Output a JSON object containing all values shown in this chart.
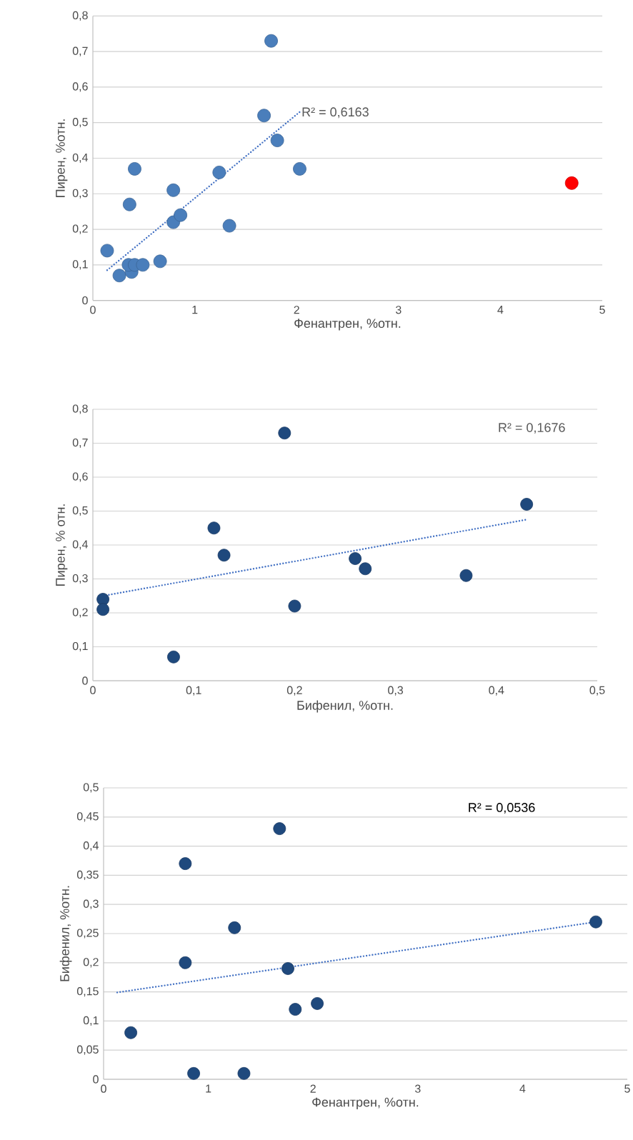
{
  "chart_data": [
    {
      "type": "scatter",
      "xlabel": "Фенантрен, %отн.",
      "ylabel": "Пирен, %отн.",
      "xlim": [
        0,
        5
      ],
      "ylim": [
        0,
        0.8
      ],
      "xticks": [
        0,
        1,
        2,
        3,
        4,
        5
      ],
      "yticks": [
        0,
        {
          "value": 0.1,
          "label": "0,1"
        },
        {
          "value": 0.2,
          "label": "0,2"
        },
        {
          "value": 0.3,
          "label": "0,3"
        },
        {
          "value": 0.4,
          "label": "0,4"
        },
        {
          "value": 0.5,
          "label": "0,5"
        },
        {
          "value": 0.6,
          "label": "0,6"
        },
        {
          "value": 0.7,
          "label": "0,7"
        },
        {
          "value": 0.8,
          "label": "0,8"
        }
      ],
      "grid": "y",
      "annotations": [
        "R² = 0,6163"
      ],
      "series": [
        {
          "type": "scatter",
          "marker": "circle",
          "color": "#4a7ebb",
          "x": [
            0.14,
            0.26,
            0.38,
            0.35,
            0.41,
            0.49,
            0.66,
            0.36,
            0.41,
            0.79,
            0.79,
            0.86,
            1.24,
            1.34,
            1.68,
            1.75,
            1.81,
            2.03
          ],
          "values": [
            0.14,
            0.07,
            0.08,
            0.1,
            0.1,
            0.1,
            0.11,
            0.27,
            0.37,
            0.31,
            0.22,
            0.24,
            0.36,
            0.21,
            0.52,
            0.73,
            0.45,
            0.37
          ]
        },
        {
          "type": "scatter",
          "marker": "circle",
          "color": "#ff0000",
          "x": [
            4.7
          ],
          "values": [
            0.33
          ]
        },
        {
          "type": "line",
          "color": "#4472c4",
          "line_style": "dotted",
          "marker": "none",
          "x": [
            0.14,
            2.03
          ],
          "values": [
            0.085,
            0.53
          ]
        }
      ]
    },
    {
      "type": "scatter",
      "xlabel": "Бифенил, %отн.",
      "ylabel": "Пирен, % отн.",
      "xlim": [
        0,
        0.5
      ],
      "ylim": [
        0,
        0.8
      ],
      "xticks": [
        0,
        {
          "value": 0.1,
          "label": "0,1"
        },
        {
          "value": 0.2,
          "label": "0,2"
        },
        {
          "value": 0.3,
          "label": "0,3"
        },
        {
          "value": 0.4,
          "label": "0,4"
        },
        {
          "value": 0.5,
          "label": "0,5"
        }
      ],
      "yticks": [
        0,
        {
          "value": 0.1,
          "label": "0,1"
        },
        {
          "value": 0.2,
          "label": "0,2"
        },
        {
          "value": 0.3,
          "label": "0,3"
        },
        {
          "value": 0.4,
          "label": "0,4"
        },
        {
          "value": 0.5,
          "label": "0,5"
        },
        {
          "value": 0.6,
          "label": "0,6"
        },
        {
          "value": 0.7,
          "label": "0,7"
        },
        {
          "value": 0.8,
          "label": "0,8"
        }
      ],
      "grid": "y",
      "annotations": [
        "R² = 0,1676"
      ],
      "series": [
        {
          "type": "scatter",
          "marker": "circle",
          "color": "#1f497d",
          "x": [
            0.01,
            0.01,
            0.08,
            0.12,
            0.13,
            0.19,
            0.2,
            0.26,
            0.27,
            0.37,
            0.43
          ],
          "values": [
            0.24,
            0.21,
            0.07,
            0.45,
            0.37,
            0.73,
            0.22,
            0.36,
            0.33,
            0.31,
            0.52
          ]
        },
        {
          "type": "line",
          "color": "#4472c4",
          "line_style": "dotted",
          "marker": "none",
          "x": [
            0.01,
            0.43
          ],
          "values": [
            0.25,
            0.475
          ]
        }
      ]
    },
    {
      "type": "scatter",
      "xlabel": "Фенантрен, %отн.",
      "ylabel": "Бифенил, %отн.",
      "xlim": [
        0,
        5
      ],
      "ylim": [
        0,
        0.5
      ],
      "xticks": [
        0,
        1,
        2,
        3,
        4,
        5
      ],
      "yticks": [
        0,
        {
          "value": 0.05,
          "label": "0,05"
        },
        {
          "value": 0.1,
          "label": "0,1"
        },
        {
          "value": 0.15,
          "label": "0,15"
        },
        {
          "value": 0.2,
          "label": "0,2"
        },
        {
          "value": 0.25,
          "label": "0,25"
        },
        {
          "value": 0.3,
          "label": "0,3"
        },
        {
          "value": 0.35,
          "label": "0,35"
        },
        {
          "value": 0.4,
          "label": "0,4"
        },
        {
          "value": 0.45,
          "label": "0,45"
        },
        {
          "value": 0.5,
          "label": "0,5"
        }
      ],
      "grid": "y",
      "annotations": [
        "R² = 0,0536"
      ],
      "series": [
        {
          "type": "scatter",
          "marker": "circle",
          "color": "#1f497d",
          "x": [
            0.26,
            0.78,
            1.68,
            1.25,
            0.78,
            1.76,
            1.83,
            2.04,
            0.86,
            1.34,
            4.7
          ],
          "values": [
            0.08,
            0.37,
            0.43,
            0.26,
            0.2,
            0.19,
            0.12,
            0.13,
            0.01,
            0.01,
            0.27
          ]
        },
        {
          "type": "line",
          "color": "#4472c4",
          "line_style": "dotted",
          "marker": "none",
          "x": [
            0.13,
            4.7
          ],
          "values": [
            0.149,
            0.27
          ]
        }
      ]
    }
  ]
}
